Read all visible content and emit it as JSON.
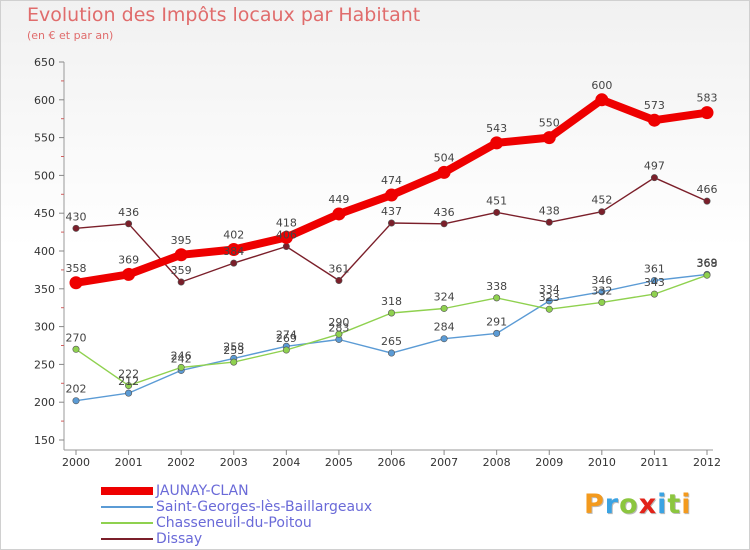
{
  "title": "Evolution des Impôts locaux par Habitant",
  "subtitle": "(en € et par an)",
  "logo": {
    "text": "Proxiti",
    "letter_colors": [
      "#f39a1e",
      "#3aa3e3",
      "#8cc63f",
      "#e2231a",
      "#3aa3e3",
      "#8cc63f",
      "#f39a1e"
    ]
  },
  "chart_data": {
    "type": "line",
    "title": "Evolution des Impôts locaux par Habitant",
    "subtitle": "(en € et par an)",
    "x": [
      "2000",
      "2001",
      "2002",
      "2003",
      "2004",
      "2005",
      "2006",
      "2007",
      "2008",
      "2009",
      "2010",
      "2011",
      "2012"
    ],
    "ylim": [
      150,
      650
    ],
    "yticks": [
      150,
      200,
      250,
      300,
      350,
      400,
      450,
      500,
      550,
      600,
      650
    ],
    "grid": false,
    "legend_position": "bottom-left",
    "series": [
      {
        "name": "JAUNAY-CLAN",
        "color": "#ee0000",
        "values": [
          358,
          369,
          395,
          402,
          418,
          449,
          474,
          504,
          543,
          550,
          600,
          573,
          583
        ]
      },
      {
        "name": "Saint-Georges-lès-Baillargeaux",
        "color": "#5b9bd5",
        "values": [
          202,
          212,
          242,
          258,
          274,
          283,
          265,
          284,
          291,
          334,
          346,
          361,
          369
        ]
      },
      {
        "name": "Chasseneuil-du-Poitou",
        "color": "#8fd14f",
        "values": [
          270,
          222,
          246,
          253,
          269,
          290,
          318,
          324,
          338,
          323,
          332,
          343,
          368
        ]
      },
      {
        "name": "Dissay",
        "color": "#7b1f2a",
        "values": [
          430,
          436,
          359,
          384,
          406,
          361,
          437,
          436,
          451,
          438,
          452,
          497,
          466
        ]
      }
    ]
  }
}
